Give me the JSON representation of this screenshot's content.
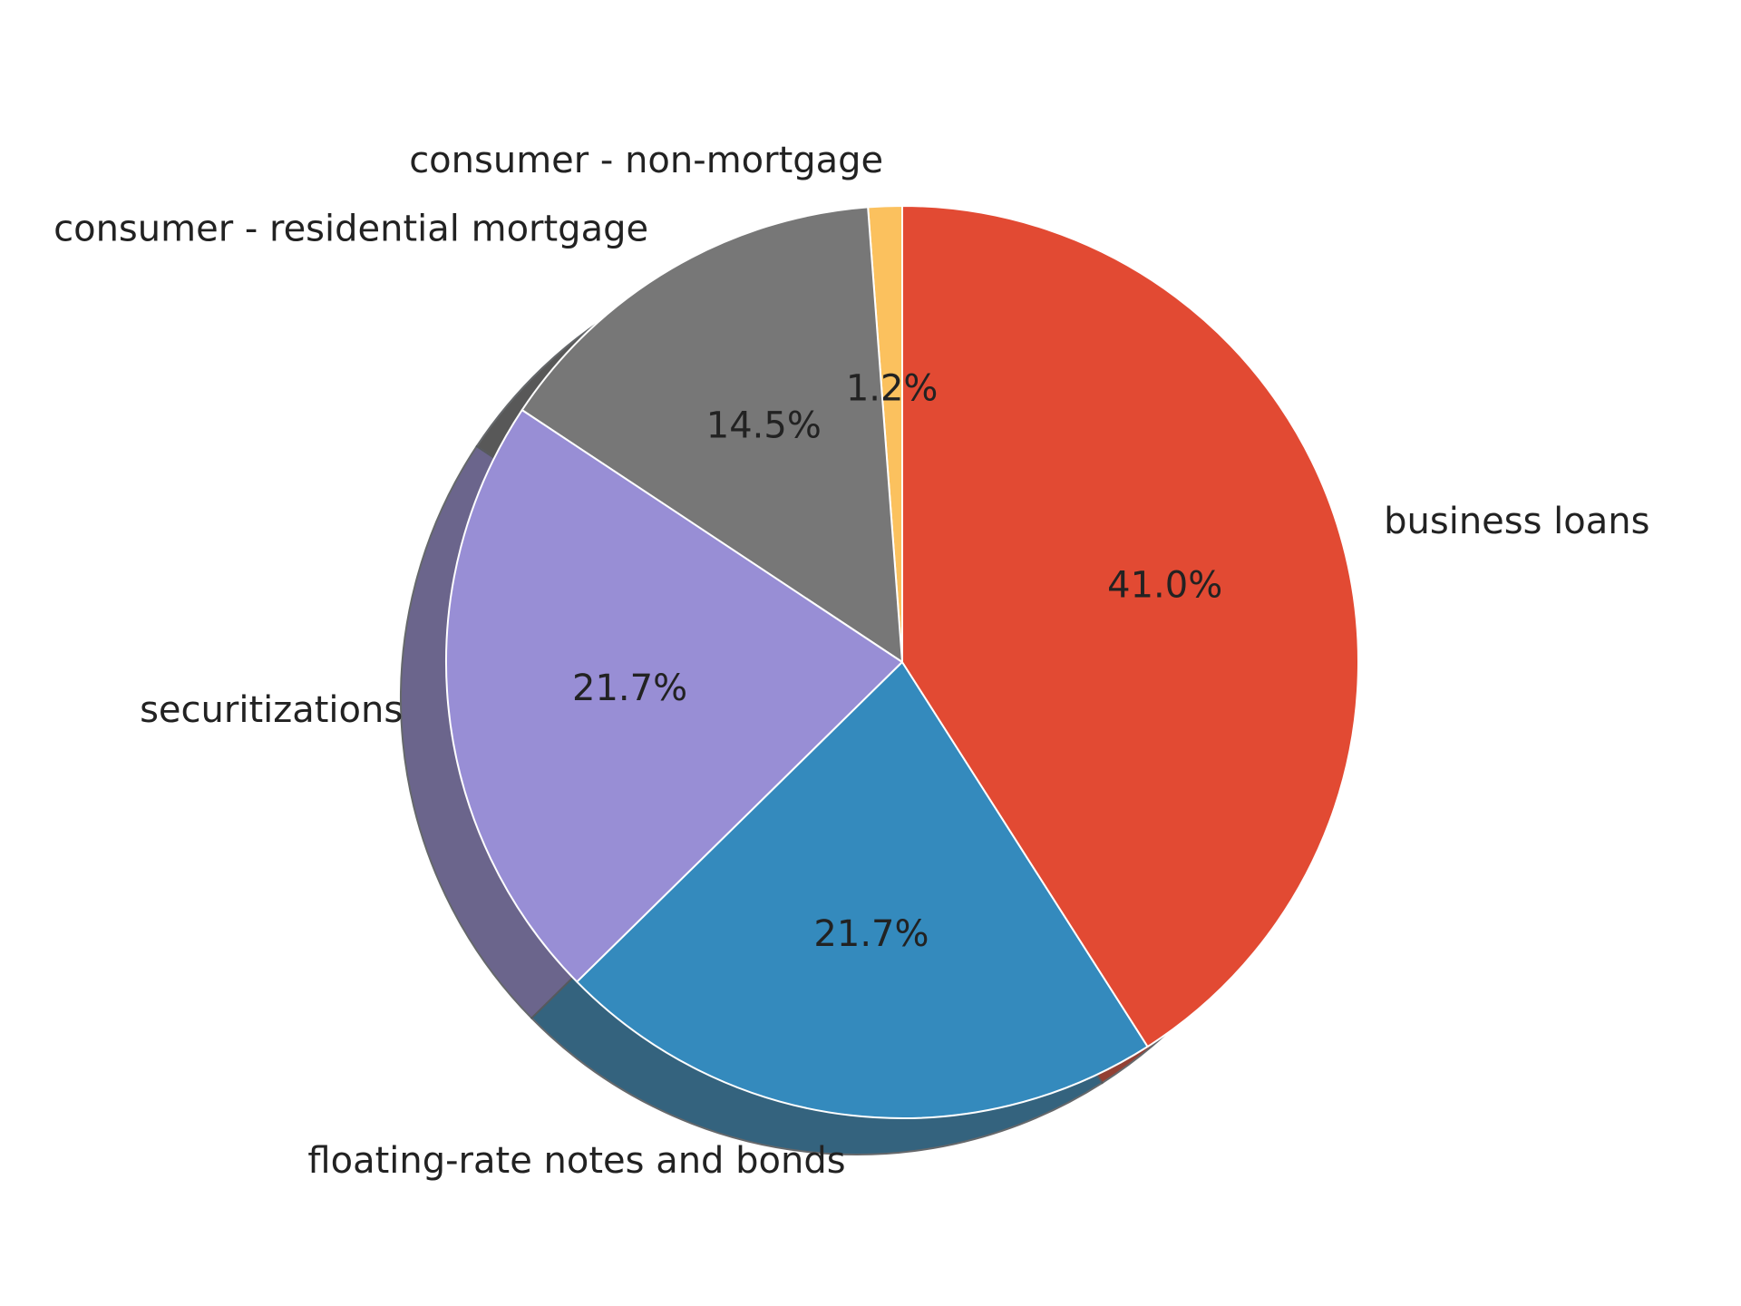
{
  "chart_data": {
    "type": "pie",
    "categories": [
      "consumer - non-mortgage",
      "consumer - residential mortgage",
      "securitizations",
      "floating-rate notes and bonds",
      "business loans"
    ],
    "values": [
      1.2,
      14.5,
      21.7,
      21.7,
      41.0
    ],
    "value_labels": [
      "1.2%",
      "14.5%",
      "21.7%",
      "21.7%",
      "41.0%"
    ],
    "colors": [
      "#fbc15e",
      "#777777",
      "#988ed5",
      "#348abd",
      "#e24a33"
    ],
    "shadow": true,
    "title": ""
  }
}
